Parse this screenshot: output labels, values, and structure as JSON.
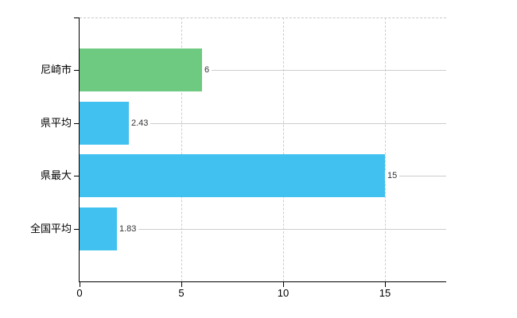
{
  "chart": {
    "background_color": "#ffffff",
    "grid_color": "#cdcdcd",
    "axis_color": "#000000",
    "category_label_color": "#000000",
    "value_label_color": "#333333"
  },
  "chart_data": {
    "type": "bar",
    "orientation": "horizontal",
    "categories": [
      "尼崎市",
      "県平均",
      "県最大",
      "全国平均"
    ],
    "values": [
      6,
      2.43,
      15,
      1.83
    ],
    "value_labels": [
      "6",
      "2.43",
      "15",
      "1.83"
    ],
    "bar_colors": [
      "#6dca80",
      "#41c1f0",
      "#41c1f0",
      "#41c1f0"
    ],
    "x_ticks": [
      0,
      5,
      10,
      15
    ],
    "x_tick_labels": [
      "0",
      "5",
      "10",
      "15"
    ],
    "xlim": [
      0,
      18
    ],
    "grid": true,
    "legend_position": "none"
  }
}
